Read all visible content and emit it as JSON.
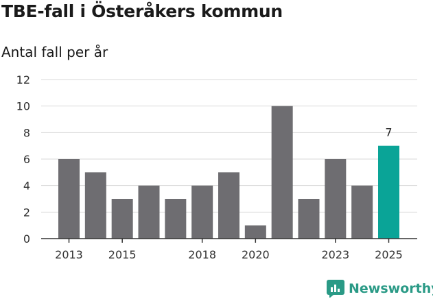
{
  "chart_data": {
    "type": "bar",
    "title": "TBE-fall i Österåkers kommun",
    "subtitle": "Antal fall per år",
    "categories": [
      "2013",
      "2014",
      "2015",
      "2016",
      "2017",
      "2018",
      "2019",
      "2020",
      "2021",
      "2022",
      "2023",
      "2024",
      "2025"
    ],
    "values": [
      6,
      5,
      3,
      4,
      3,
      4,
      5,
      1,
      10,
      3,
      6,
      4,
      7
    ],
    "x_tick_labels": [
      "2013",
      "2015",
      "2018",
      "2020",
      "2023",
      "2025"
    ],
    "y_ticks": [
      0,
      2,
      4,
      6,
      8,
      10,
      12
    ],
    "ylim": [
      0,
      12
    ],
    "highlight_category": "2025",
    "highlight_label": "7",
    "xlabel": "",
    "ylabel": "",
    "grid": true
  },
  "colors": {
    "bar": "#6e6d71",
    "highlight": "#0aa497",
    "grid": "#d9d9d9",
    "brand": "#2a9a86"
  },
  "brand": {
    "name": "Newsworthy",
    "icon": "newsworthy-logo-icon"
  }
}
